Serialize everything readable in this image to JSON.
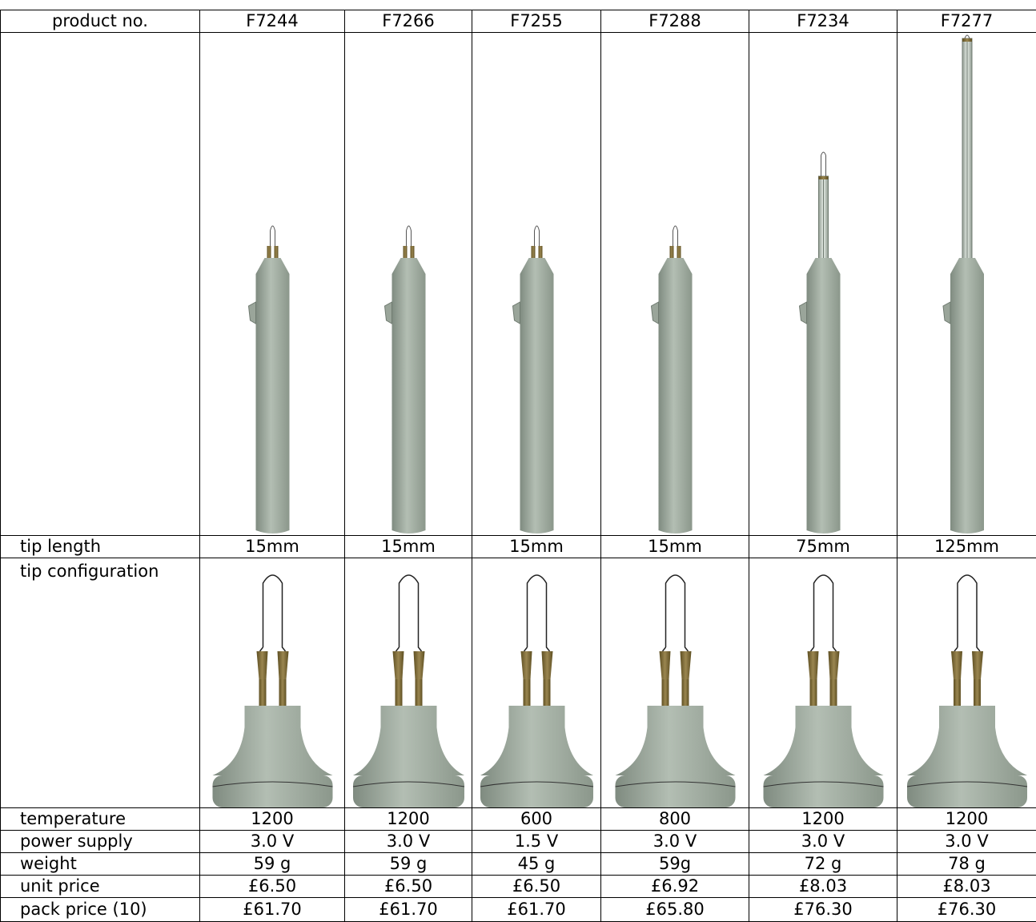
{
  "table": {
    "header": [
      "product no.",
      "F7244",
      "F7266",
      "F7255",
      "F7288",
      "F7234",
      "F7277"
    ],
    "tip_length": {
      "label": "tip length",
      "values": [
        "15mm",
        "15mm",
        "15mm",
        "15mm",
        "75mm",
        "125mm"
      ]
    },
    "tip_configuration": {
      "label": "tip configuration"
    },
    "rows": [
      [
        "temperature",
        1200,
        1200,
        600,
        800,
        1200,
        1200
      ],
      [
        "power supply",
        "3.0 V",
        "3.0 V",
        "1.5 V",
        "3.0 V",
        "3.0 V",
        "3.0 V"
      ],
      [
        "weight",
        "59 g",
        "59 g",
        "45 g",
        "59g",
        "72 g",
        "78 g"
      ],
      [
        "unit price",
        "£6.50",
        "£6.50",
        "£6.50",
        "£6.92",
        "£8.03",
        "£8.03"
      ],
      [
        "pack price (10)",
        "£61.70",
        "£61.70",
        "£61.70",
        "£65.80",
        "£76.30",
        "£76.30"
      ]
    ]
  }
}
